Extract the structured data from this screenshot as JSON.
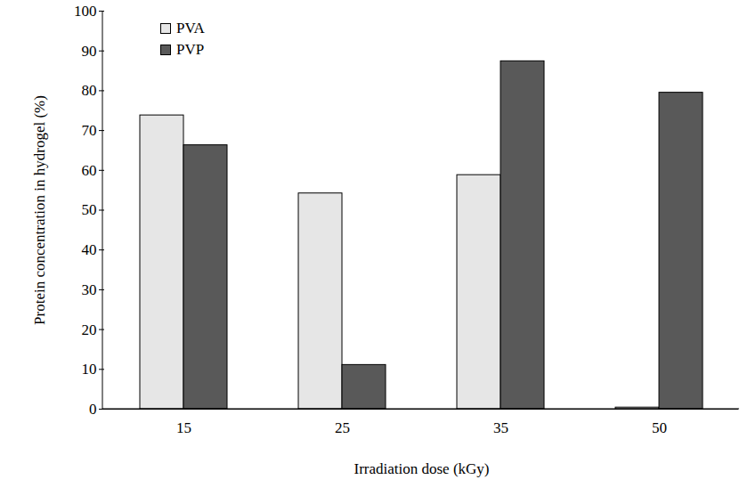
{
  "chart_data": {
    "type": "bar",
    "categories": [
      15,
      25,
      35,
      50
    ],
    "series": [
      {
        "name": "PVA",
        "color": "#e6e6e6",
        "values": [
          73.8,
          54.2,
          58.8,
          0.4
        ]
      },
      {
        "name": "PVP",
        "color": "#595959",
        "values": [
          66.3,
          11.1,
          87.4,
          79.5
        ]
      }
    ],
    "x_label": "Irradiation dose (kGy)",
    "y_label": "Protein concentration in hydrogel (%)",
    "ylim": [
      0,
      100
    ],
    "yticks": [
      0,
      10,
      20,
      30,
      40,
      50,
      60,
      70,
      80,
      90,
      100
    ],
    "grid": false,
    "legend": "top-left"
  }
}
